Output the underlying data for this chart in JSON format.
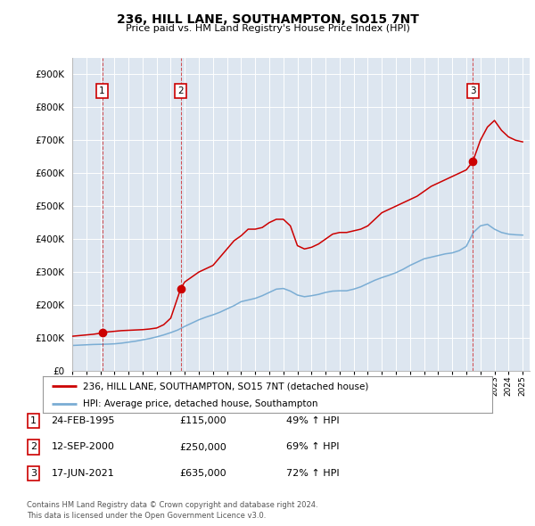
{
  "title": "236, HILL LANE, SOUTHAMPTON, SO15 7NT",
  "subtitle": "Price paid vs. HM Land Registry's House Price Index (HPI)",
  "xlim": [
    1993.0,
    2025.5
  ],
  "ylim": [
    0,
    950000
  ],
  "yticks": [
    0,
    100000,
    200000,
    300000,
    400000,
    500000,
    600000,
    700000,
    800000,
    900000
  ],
  "ytick_labels": [
    "£0",
    "£100K",
    "£200K",
    "£300K",
    "£400K",
    "£500K",
    "£600K",
    "£700K",
    "£800K",
    "£900K"
  ],
  "xticks": [
    1993,
    1994,
    1995,
    1996,
    1997,
    1998,
    1999,
    2000,
    2001,
    2002,
    2003,
    2004,
    2005,
    2006,
    2007,
    2008,
    2009,
    2010,
    2011,
    2012,
    2013,
    2014,
    2015,
    2016,
    2017,
    2018,
    2019,
    2020,
    2021,
    2022,
    2023,
    2024,
    2025
  ],
  "background_color": "#ffffff",
  "plot_bg_color": "#dde6f0",
  "grid_color": "#ffffff",
  "sale_color": "#cc0000",
  "hpi_color": "#7aadd4",
  "sale_label": "236, HILL LANE, SOUTHAMPTON, SO15 7NT (detached house)",
  "hpi_label": "HPI: Average price, detached house, Southampton",
  "transactions": [
    {
      "num": 1,
      "date_label": "24-FEB-1995",
      "date_x": 1995.13,
      "price": 115000,
      "pct": "49%",
      "arrow": "↑"
    },
    {
      "num": 2,
      "date_label": "12-SEP-2000",
      "date_x": 2000.71,
      "price": 250000,
      "pct": "69%",
      "arrow": "↑"
    },
    {
      "num": 3,
      "date_label": "17-JUN-2021",
      "date_x": 2021.46,
      "price": 635000,
      "pct": "72%",
      "arrow": "↑"
    }
  ],
  "footnote1": "Contains HM Land Registry data © Crown copyright and database right 2024.",
  "footnote2": "This data is licensed under the Open Government Licence v3.0.",
  "sale_line_x": [
    1993.0,
    1993.5,
    1994.0,
    1994.5,
    1995.13,
    1995.5,
    1996.0,
    1996.5,
    1997.0,
    1997.5,
    1998.0,
    1998.5,
    1999.0,
    1999.5,
    2000.0,
    2000.71,
    2001.0,
    2001.5,
    2002.0,
    2002.5,
    2003.0,
    2003.5,
    2004.0,
    2004.5,
    2005.0,
    2005.5,
    2006.0,
    2006.5,
    2007.0,
    2007.5,
    2008.0,
    2008.5,
    2009.0,
    2009.5,
    2010.0,
    2010.5,
    2011.0,
    2011.5,
    2012.0,
    2012.5,
    2013.0,
    2013.5,
    2014.0,
    2014.5,
    2015.0,
    2015.5,
    2016.0,
    2016.5,
    2017.0,
    2017.5,
    2018.0,
    2018.5,
    2019.0,
    2019.5,
    2020.0,
    2020.5,
    2021.0,
    2021.46,
    2021.5,
    2022.0,
    2022.5,
    2023.0,
    2023.5,
    2024.0,
    2024.5,
    2025.0
  ],
  "sale_line_y": [
    105000,
    107000,
    109000,
    111000,
    115000,
    118000,
    120000,
    122000,
    123000,
    124000,
    125000,
    127000,
    130000,
    140000,
    160000,
    250000,
    270000,
    285000,
    300000,
    310000,
    320000,
    345000,
    370000,
    395000,
    410000,
    430000,
    430000,
    435000,
    450000,
    460000,
    460000,
    440000,
    380000,
    370000,
    375000,
    385000,
    400000,
    415000,
    420000,
    420000,
    425000,
    430000,
    440000,
    460000,
    480000,
    490000,
    500000,
    510000,
    520000,
    530000,
    545000,
    560000,
    570000,
    580000,
    590000,
    600000,
    610000,
    635000,
    640000,
    700000,
    740000,
    760000,
    730000,
    710000,
    700000,
    695000
  ],
  "hpi_line_x": [
    1993.0,
    1993.5,
    1994.0,
    1994.5,
    1995.0,
    1995.5,
    1996.0,
    1996.5,
    1997.0,
    1997.5,
    1998.0,
    1998.5,
    1999.0,
    1999.5,
    2000.0,
    2000.5,
    2001.0,
    2001.5,
    2002.0,
    2002.5,
    2003.0,
    2003.5,
    2004.0,
    2004.5,
    2005.0,
    2005.5,
    2006.0,
    2006.5,
    2007.0,
    2007.5,
    2008.0,
    2008.5,
    2009.0,
    2009.5,
    2010.0,
    2010.5,
    2011.0,
    2011.5,
    2012.0,
    2012.5,
    2013.0,
    2013.5,
    2014.0,
    2014.5,
    2015.0,
    2015.5,
    2016.0,
    2016.5,
    2017.0,
    2017.5,
    2018.0,
    2018.5,
    2019.0,
    2019.5,
    2020.0,
    2020.5,
    2021.0,
    2021.5,
    2022.0,
    2022.5,
    2023.0,
    2023.5,
    2024.0,
    2024.5,
    2025.0
  ],
  "hpi_line_y": [
    77000,
    78000,
    79000,
    80000,
    80500,
    81000,
    82000,
    84000,
    87000,
    90000,
    94000,
    98000,
    103000,
    109000,
    116000,
    124000,
    135000,
    145000,
    155000,
    163000,
    170000,
    178000,
    188000,
    198000,
    210000,
    215000,
    220000,
    228000,
    238000,
    248000,
    250000,
    242000,
    230000,
    225000,
    228000,
    232000,
    238000,
    242000,
    243000,
    243000,
    248000,
    255000,
    265000,
    275000,
    283000,
    290000,
    298000,
    308000,
    320000,
    330000,
    340000,
    345000,
    350000,
    355000,
    358000,
    365000,
    378000,
    420000,
    440000,
    445000,
    430000,
    420000,
    415000,
    413000,
    412000
  ]
}
